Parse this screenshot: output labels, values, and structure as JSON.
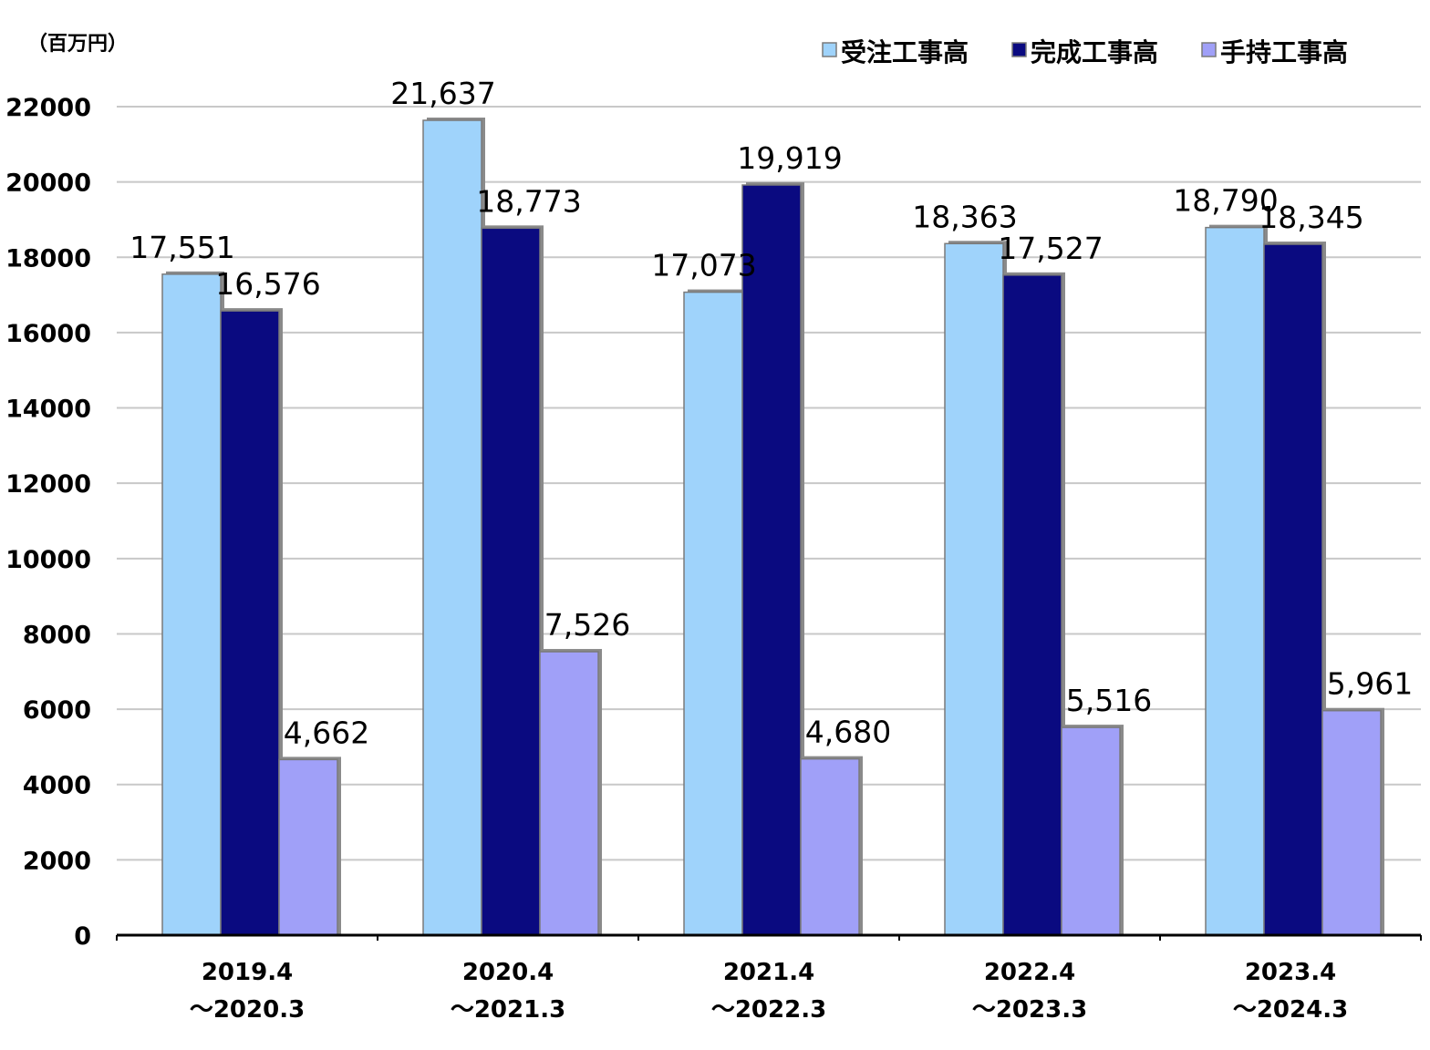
{
  "chart_data": {
    "type": "bar",
    "unit_label": "（百万円）",
    "categories": [
      [
        "2019.4",
        "～2020.3"
      ],
      [
        "2020.4",
        "～2021.3"
      ],
      [
        "2021.4",
        "～2022.3"
      ],
      [
        "2022.4",
        "～2023.3"
      ],
      [
        "2023.4",
        "～2024.3"
      ]
    ],
    "series": [
      {
        "name": "受注工事高",
        "color": "#9fd3fb",
        "values": [
          17551,
          21637,
          17073,
          18363,
          18790
        ],
        "labels": [
          "17,551",
          "21,637",
          "17,073",
          "18,363",
          "18,790"
        ]
      },
      {
        "name": "完成工事高",
        "color": "#0a0a80",
        "values": [
          16576,
          18773,
          19919,
          17527,
          18345
        ],
        "labels": [
          "16,576",
          "18,773",
          "19,919",
          "17,527",
          "18,345"
        ]
      },
      {
        "name": "手持工事高",
        "color": "#a0a0f8",
        "values": [
          4662,
          7526,
          4680,
          5516,
          5961
        ],
        "labels": [
          "4,662",
          "7,526",
          "4,680",
          "5,516",
          "5,961"
        ]
      }
    ],
    "ylim": [
      0,
      22000
    ],
    "yticks": [
      0,
      2000,
      4000,
      6000,
      8000,
      10000,
      12000,
      14000,
      16000,
      18000,
      20000,
      22000
    ],
    "grid": true,
    "legend_position": "top-right"
  }
}
